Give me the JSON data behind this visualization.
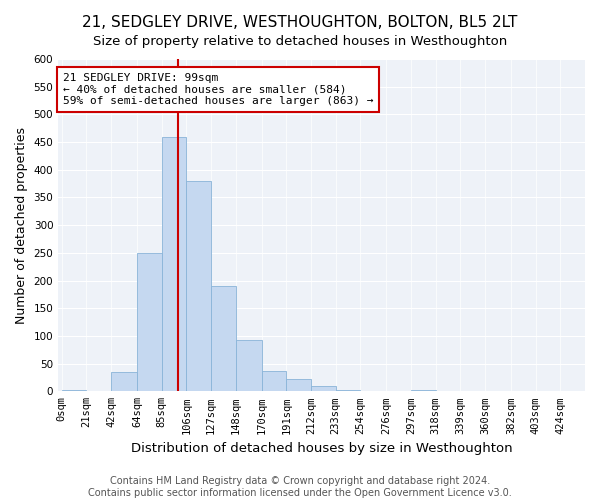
{
  "title": "21, SEDGLEY DRIVE, WESTHOUGHTON, BOLTON, BL5 2LT",
  "subtitle": "Size of property relative to detached houses in Westhoughton",
  "xlabel": "Distribution of detached houses by size in Westhoughton",
  "ylabel": "Number of detached properties",
  "tick_labels": [
    "0sqm",
    "21sqm",
    "42sqm",
    "64sqm",
    "85sqm",
    "106sqm",
    "127sqm",
    "148sqm",
    "170sqm",
    "191sqm",
    "212sqm",
    "233sqm",
    "254sqm",
    "276sqm",
    "297sqm",
    "318sqm",
    "339sqm",
    "360sqm",
    "382sqm",
    "403sqm",
    "424sqm"
  ],
  "bin_edges": [
    0,
    21,
    42,
    64,
    85,
    106,
    127,
    148,
    170,
    191,
    212,
    233,
    254,
    276,
    297,
    318,
    339,
    360,
    382,
    403,
    424
  ],
  "bar_heights": [
    2,
    0,
    35,
    250,
    460,
    380,
    190,
    92,
    37,
    22,
    10,
    2,
    1,
    0,
    2,
    0,
    0,
    0,
    0,
    0
  ],
  "bar_color": "#c5d8f0",
  "bar_edge_color": "#8ab4d8",
  "property_line_x": 99,
  "property_line_color": "#cc0000",
  "annotation_text": "21 SEDGLEY DRIVE: 99sqm\n← 40% of detached houses are smaller (584)\n59% of semi-detached houses are larger (863) →",
  "annotation_box_facecolor": "#ffffff",
  "annotation_box_edgecolor": "#cc0000",
  "ylim": [
    0,
    600
  ],
  "yticks": [
    0,
    50,
    100,
    150,
    200,
    250,
    300,
    350,
    400,
    450,
    500,
    550,
    600
  ],
  "bg_color": "#eef2f8",
  "title_fontsize": 11,
  "subtitle_fontsize": 9.5,
  "axis_label_fontsize": 9,
  "tick_fontsize": 7.5,
  "annotation_fontsize": 8,
  "footer_fontsize": 7,
  "footer_line1": "Contains HM Land Registry data © Crown copyright and database right 2024.",
  "footer_line2": "Contains public sector information licensed under the Open Government Licence v3.0."
}
